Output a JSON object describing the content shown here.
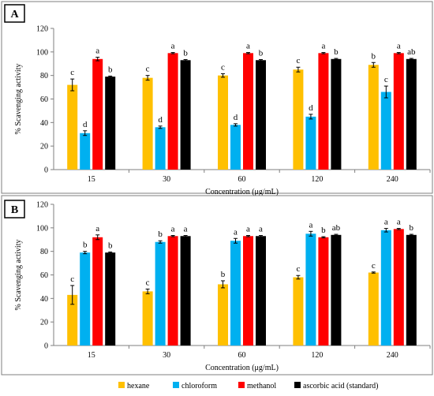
{
  "legend": {
    "placement": "bottom",
    "entries": [
      {
        "name": "hexane",
        "color": "#FFC000"
      },
      {
        "name": "chloroform",
        "color": "#00B0F0"
      },
      {
        "name": "methanol",
        "color": "#FF0000"
      },
      {
        "name": "ascorbic acid (standard)",
        "color": "#000000"
      }
    ]
  },
  "chart_data": [
    {
      "panel_label": "A",
      "type": "bar",
      "xlabel": "Concentration (μg/mL)",
      "ylabel": "% Scavenging activity",
      "ylim": [
        0,
        120
      ],
      "yticks": [
        0,
        20,
        40,
        60,
        80,
        100,
        120
      ],
      "categories": [
        "15",
        "30",
        "60",
        "120",
        "240"
      ],
      "series": [
        {
          "name": "hexane",
          "color": "#FFC000",
          "values": [
            72,
            78,
            80,
            85,
            89
          ],
          "errors": [
            5,
            2,
            1.5,
            2,
            2
          ],
          "letters": [
            "c",
            "c",
            "c",
            "c",
            "b"
          ]
        },
        {
          "name": "chloroform",
          "color": "#00B0F0",
          "values": [
            31,
            36,
            38,
            45,
            66
          ],
          "errors": [
            2,
            1,
            1,
            2,
            5
          ],
          "letters": [
            "d",
            "d",
            "d",
            "d",
            "c"
          ]
        },
        {
          "name": "methanol",
          "color": "#FF0000",
          "values": [
            94,
            99,
            99,
            99,
            99
          ],
          "errors": [
            1.5,
            0.5,
            0.5,
            0.5,
            0.5
          ],
          "letters": [
            "a",
            "a",
            "a",
            "a",
            "a"
          ]
        },
        {
          "name": "ascorbic acid (standard)",
          "color": "#000000",
          "values": [
            79,
            93,
            93,
            94,
            94
          ],
          "errors": [
            0.5,
            0.5,
            0.5,
            0.5,
            0.5
          ],
          "letters": [
            "b",
            "b",
            "b",
            "b",
            "ab"
          ]
        }
      ]
    },
    {
      "panel_label": "B",
      "type": "bar",
      "xlabel": "Concentration (μg/mL)",
      "ylabel": "% Scavenging activity",
      "ylim": [
        0,
        120
      ],
      "yticks": [
        0,
        20,
        40,
        60,
        80,
        100,
        120
      ],
      "categories": [
        "15",
        "30",
        "60",
        "120",
        "240"
      ],
      "series": [
        {
          "name": "hexane",
          "color": "#FFC000",
          "values": [
            43,
            46,
            52,
            58,
            62
          ],
          "errors": [
            8,
            2,
            3,
            1.5,
            0.5
          ],
          "letters": [
            "c",
            "c",
            "b",
            "c",
            "c"
          ]
        },
        {
          "name": "chloroform",
          "color": "#00B0F0",
          "values": [
            79,
            88,
            89,
            95,
            98
          ],
          "errors": [
            1,
            1,
            2,
            2,
            1.5
          ],
          "letters": [
            "b",
            "b",
            "a",
            "a",
            "a"
          ]
        },
        {
          "name": "methanol",
          "color": "#FF0000",
          "values": [
            92,
            93,
            93,
            92,
            99
          ],
          "errors": [
            2,
            0.5,
            0.5,
            0.5,
            0.5
          ],
          "letters": [
            "a",
            "a",
            "a",
            "b",
            "a"
          ]
        },
        {
          "name": "ascorbic acid (standard)",
          "color": "#000000",
          "values": [
            79,
            93,
            93,
            94,
            94
          ],
          "errors": [
            0.5,
            0.5,
            0.5,
            0.5,
            0.5
          ],
          "letters": [
            "b",
            "a",
            "a",
            "ab",
            "b"
          ]
        }
      ]
    }
  ]
}
